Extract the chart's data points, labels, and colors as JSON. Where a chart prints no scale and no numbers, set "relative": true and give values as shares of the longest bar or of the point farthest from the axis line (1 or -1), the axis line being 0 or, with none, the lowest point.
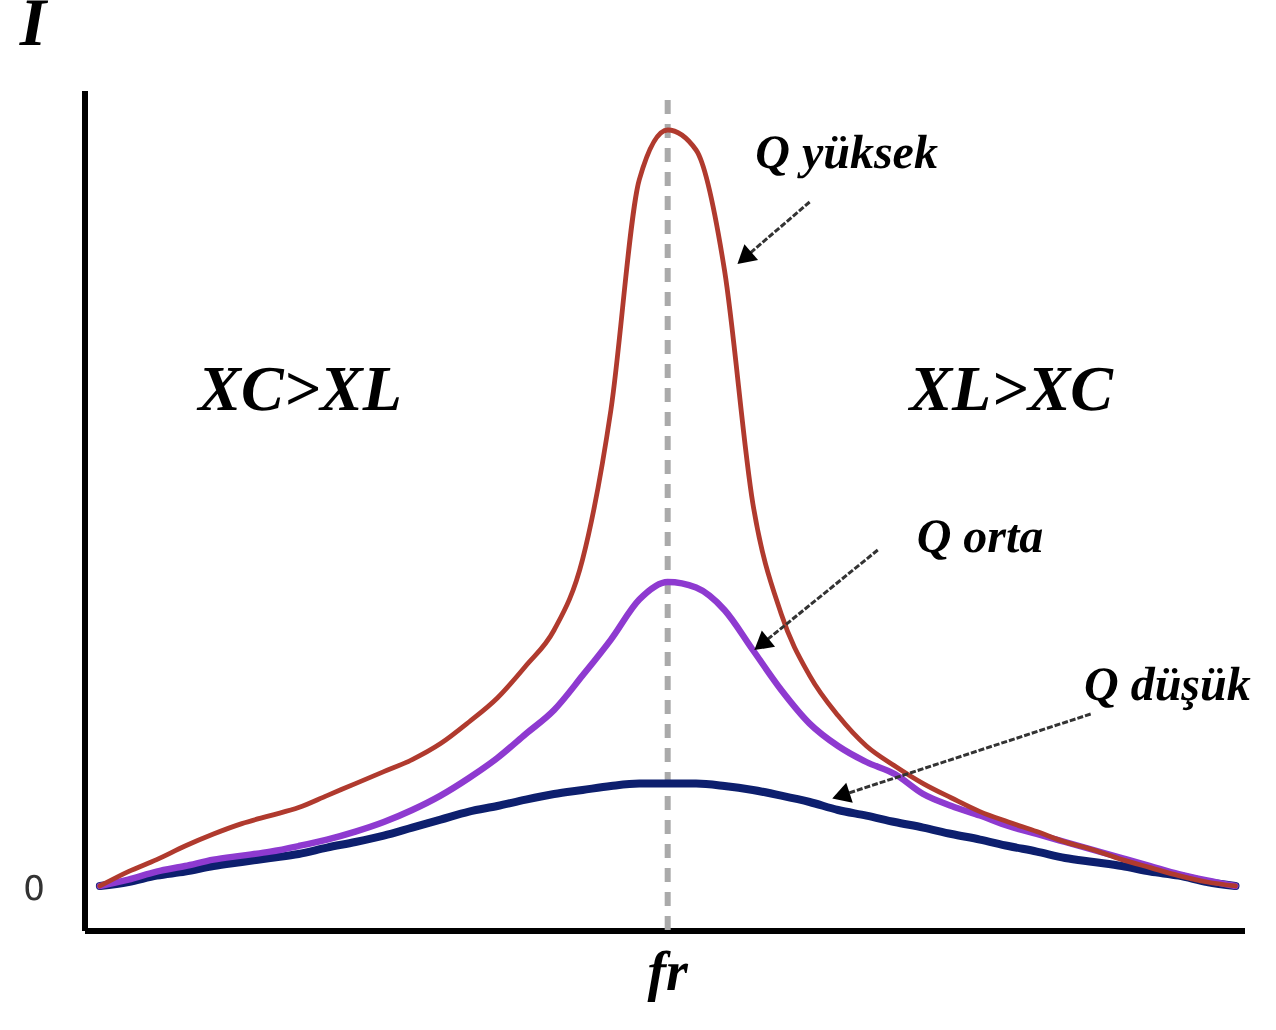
{
  "chart_data": {
    "type": "line",
    "ylabel": "I",
    "relative": true,
    "line_style": "solid",
    "categories": [
      null,
      null,
      null,
      null,
      null,
      null,
      null,
      null,
      null,
      null,
      null,
      null,
      null,
      null,
      null,
      null,
      null,
      null,
      null,
      null,
      null,
      null,
      null,
      null,
      null,
      null,
      null,
      null,
      null,
      null,
      null,
      null,
      null,
      null,
      null,
      null,
      null,
      null,
      null,
      null,
      null
    ],
    "series": [
      {
        "name": "Q yüksek",
        "color": "#b03a2e",
        "values": [
          0.055,
          0.073,
          0.088,
          0.105,
          0.12,
          0.133,
          0.143,
          0.153,
          0.168,
          0.183,
          0.198,
          0.213,
          0.233,
          0.26,
          0.29,
          0.33,
          0.375,
          0.463,
          0.65,
          0.938,
          1.0,
          0.975,
          0.825,
          0.533,
          0.395,
          0.318,
          0.268,
          0.23,
          0.205,
          0.183,
          0.165,
          0.148,
          0.135,
          0.123,
          0.11,
          0.1,
          0.088,
          0.078,
          0.068,
          0.06,
          0.055
        ]
      },
      {
        "name": "Q orta",
        "color": "#8e3ad0",
        "values": [
          0.055,
          0.063,
          0.073,
          0.08,
          0.088,
          0.093,
          0.098,
          0.105,
          0.113,
          0.123,
          0.135,
          0.15,
          0.168,
          0.19,
          0.215,
          0.245,
          0.275,
          0.318,
          0.363,
          0.413,
          0.435,
          0.428,
          0.4,
          0.35,
          0.3,
          0.258,
          0.23,
          0.21,
          0.195,
          0.17,
          0.155,
          0.143,
          0.13,
          0.12,
          0.11,
          0.1,
          0.09,
          0.08,
          0.07,
          0.062,
          0.055
        ]
      },
      {
        "name": "Q düşük",
        "color": "#0d1f6e",
        "values": [
          0.055,
          0.06,
          0.068,
          0.073,
          0.08,
          0.085,
          0.09,
          0.095,
          0.103,
          0.11,
          0.118,
          0.128,
          0.138,
          0.148,
          0.155,
          0.163,
          0.17,
          0.175,
          0.18,
          0.183,
          0.183,
          0.183,
          0.18,
          0.175,
          0.168,
          0.16,
          0.15,
          0.143,
          0.135,
          0.128,
          0.12,
          0.113,
          0.105,
          0.098,
          0.09,
          0.085,
          0.08,
          0.073,
          0.068,
          0.06,
          0.055
        ]
      }
    ],
    "ref_lines": [
      {
        "axis": "x",
        "label": "fr",
        "color": "#aaaaaa",
        "line_style": "dashed"
      }
    ],
    "annotations": [
      "XC>XL",
      "XL>XC",
      "0"
    ]
  }
}
